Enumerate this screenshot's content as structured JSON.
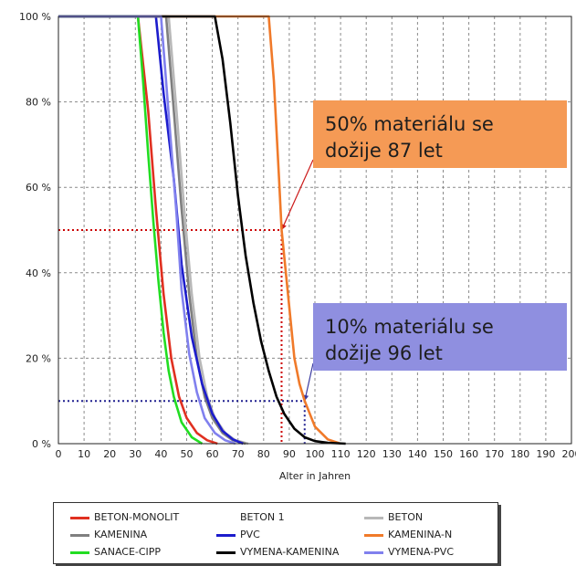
{
  "chart_data": {
    "type": "line",
    "xlabel": "Alter in Jahren",
    "ylabel": "",
    "xlim": [
      0,
      200
    ],
    "ylim": [
      0,
      100
    ],
    "x_ticks": [
      "0",
      "10",
      "20",
      "30",
      "40",
      "50",
      "60",
      "70",
      "80",
      "90",
      "100",
      "110",
      "120",
      "130",
      "140",
      "150",
      "160",
      "170",
      "180",
      "190",
      "200"
    ],
    "y_ticks": [
      "0 %",
      "20 %",
      "40 %",
      "60 %",
      "80 %",
      "100 %"
    ],
    "grid": true,
    "legend_position": "bottom",
    "series": [
      {
        "name": "BETON-MONOLIT",
        "color": "#e03020",
        "x": [
          0,
          31,
          35,
          38,
          41,
          44,
          47,
          50,
          54,
          58,
          62
        ],
        "y": [
          100,
          100,
          78,
          55,
          35,
          20,
          11,
          6,
          2.5,
          0.8,
          0
        ]
      },
      {
        "name": "BETON 1",
        "color": "#ffffff",
        "x": [],
        "y": []
      },
      {
        "name": "BETON",
        "color": "#b8b8b8",
        "x": [
          0,
          43,
          46,
          49,
          52,
          55,
          58,
          61,
          65,
          69,
          74
        ],
        "y": [
          100,
          100,
          78,
          55,
          35,
          20,
          11,
          6,
          2.5,
          0.8,
          0
        ]
      },
      {
        "name": "KAMENINA",
        "color": "#7f7f7f",
        "x": [
          0,
          42,
          45,
          48,
          51,
          54,
          57,
          60,
          64,
          68,
          73
        ],
        "y": [
          100,
          100,
          78,
          55,
          35,
          20,
          11,
          6,
          2.5,
          0.8,
          0
        ]
      },
      {
        "name": "PVC",
        "color": "#1c1ccc",
        "x": [
          0,
          38,
          41,
          45,
          48,
          52,
          56,
          60,
          64,
          68,
          72
        ],
        "y": [
          100,
          100,
          82,
          62,
          42,
          25,
          14,
          7,
          3,
          1,
          0
        ]
      },
      {
        "name": "KAMENINA-N",
        "color": "#f07a2a",
        "x": [
          0,
          82,
          84,
          86,
          87,
          89,
          92,
          94,
          96,
          100,
          105,
          110
        ],
        "y": [
          100,
          100,
          85,
          62,
          50,
          38,
          20,
          14,
          10,
          4,
          1,
          0
        ]
      },
      {
        "name": "SANACE-CIPP",
        "color": "#22dd22",
        "x": [
          0,
          31,
          33,
          35,
          37,
          39,
          41,
          43,
          45,
          48,
          52,
          56
        ],
        "y": [
          100,
          100,
          85,
          68,
          52,
          38,
          26,
          17,
          11,
          5,
          1.5,
          0
        ]
      },
      {
        "name": "VYMENA-KAMENINA",
        "color": "#000000",
        "x": [
          0,
          61,
          64,
          67,
          70,
          73,
          76,
          79,
          82,
          85,
          88,
          92,
          96,
          100,
          105,
          112
        ],
        "y": [
          100,
          100,
          90,
          75,
          58,
          44,
          33,
          24,
          17,
          11,
          7,
          3.5,
          1.5,
          0.6,
          0.2,
          0
        ]
      },
      {
        "name": "VYMENA-PVC",
        "color": "#8080ee",
        "x": [
          0,
          40,
          43,
          46,
          48,
          51,
          54,
          57,
          61,
          65,
          69
        ],
        "y": [
          100,
          100,
          77,
          54,
          36,
          21,
          12,
          6,
          2.5,
          0.8,
          0
        ]
      }
    ],
    "reference_lines": [
      {
        "color": "#cc0000",
        "x": 87,
        "y": 50
      },
      {
        "color": "#202090",
        "x": 96,
        "y": 10
      }
    ],
    "annotations": [
      {
        "lines": [
          "50% materiálu se",
          "dožije 87 let"
        ],
        "color": "#f59a55"
      },
      {
        "lines": [
          "10% materiálu se",
          "dožije 96 let"
        ],
        "color": "#8f8fe0"
      }
    ]
  }
}
